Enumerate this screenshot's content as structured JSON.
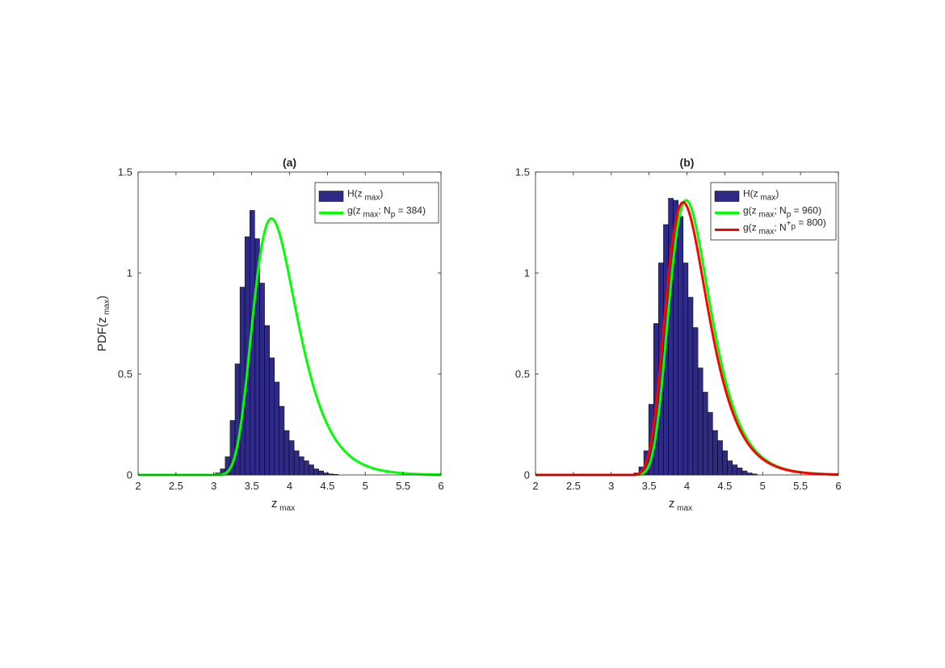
{
  "chart_data": [
    {
      "type": "bar",
      "title": "(a)",
      "xlabel": {
        "base": "z",
        "sub": "max"
      },
      "ylabel": {
        "base": "PDF(z",
        "sub": "max",
        "tail": ")"
      },
      "xlim": [
        2,
        6
      ],
      "ylim": [
        0,
        1.5
      ],
      "xticks": [
        "2",
        "2.5",
        "3",
        "3.5",
        "4",
        "4.5",
        "5",
        "5.5",
        "6"
      ],
      "yticks": [
        "0",
        "0.5",
        "1",
        "1.5"
      ],
      "grid": false,
      "legend_position": "top-right",
      "histogram": {
        "name": {
          "base": "H(z",
          "sub": "max",
          "tail": ")"
        },
        "color": "#2E2A85",
        "bin_start": 3.02,
        "bin_width": 0.065,
        "values": [
          0.01,
          0.03,
          0.09,
          0.27,
          0.55,
          0.93,
          1.18,
          1.31,
          1.17,
          0.95,
          0.74,
          0.58,
          0.46,
          0.34,
          0.22,
          0.17,
          0.12,
          0.09,
          0.07,
          0.05,
          0.03,
          0.02,
          0.01,
          0.005,
          0.003
        ]
      },
      "curves": [
        {
          "name": {
            "base": "g(z",
            "sub": "max",
            "tail": "; N",
            "sub2": "p",
            "sup2": "",
            "tail2": " = 384)"
          },
          "color": "#00FF00",
          "mode": 3.76,
          "scale": 0.29,
          "peak": 1.27
        }
      ]
    },
    {
      "type": "bar",
      "title": "(b)",
      "xlabel": {
        "base": "z",
        "sub": "max"
      },
      "ylabel": null,
      "xlim": [
        2,
        6
      ],
      "ylim": [
        0,
        1.5
      ],
      "xticks": [
        "2",
        "2.5",
        "3",
        "3.5",
        "4",
        "4.5",
        "5",
        "5.5",
        "6"
      ],
      "yticks": [
        "0",
        "0.5",
        "1",
        "1.5"
      ],
      "grid": false,
      "legend_position": "top-right",
      "histogram": {
        "name": {
          "base": "H(z",
          "sub": "max",
          "tail": ")"
        },
        "color": "#2E2A85",
        "bin_start": 3.3,
        "bin_width": 0.065,
        "values": [
          0.01,
          0.04,
          0.12,
          0.35,
          0.75,
          1.05,
          1.24,
          1.37,
          1.36,
          1.28,
          1.05,
          0.88,
          0.73,
          0.53,
          0.41,
          0.31,
          0.22,
          0.17,
          0.12,
          0.07,
          0.05,
          0.035,
          0.02,
          0.01,
          0.005
        ]
      },
      "curves": [
        {
          "name": {
            "base": "g(z",
            "sub": "max",
            "tail": "; N",
            "sub2": "p",
            "sup2": "",
            "tail2": " = 960)"
          },
          "color": "#00FF00",
          "mode": 3.99,
          "scale": 0.27,
          "peak": 1.36
        },
        {
          "name": {
            "base": "g(z",
            "sub": "max",
            "tail": "; N",
            "sub2": "p",
            "sup2": "+",
            "tail2": " = 800)"
          },
          "color": "#FF0000",
          "mode": 3.95,
          "scale": 0.275,
          "peak": 1.35
        }
      ]
    }
  ]
}
